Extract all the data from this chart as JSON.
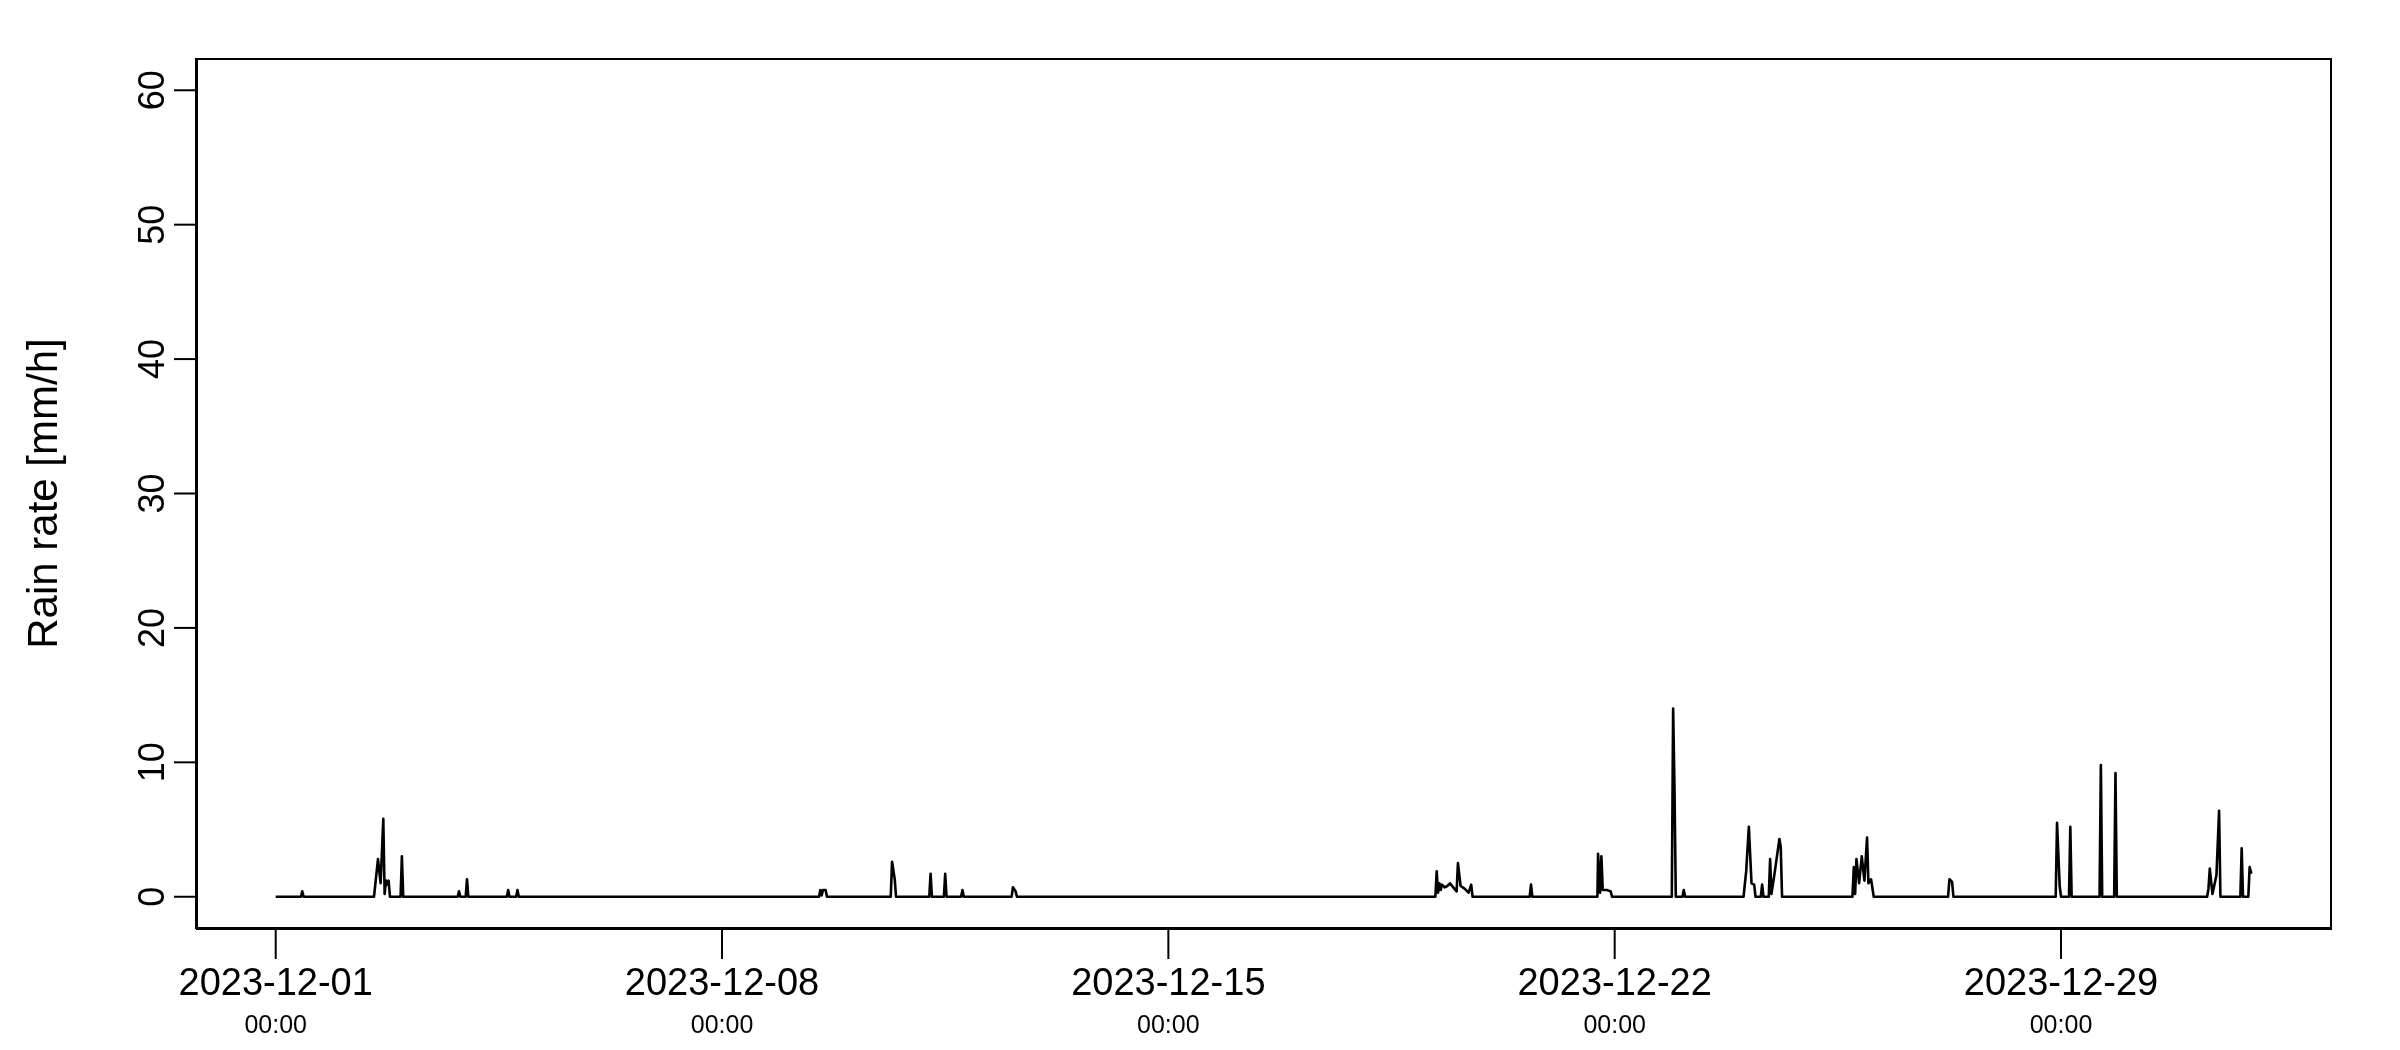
{
  "chart_data": {
    "type": "line",
    "ylabel": "Rain rate [mm/h]",
    "xlim": [
      "2023-11-29T18:00",
      "2024-01-02T06:00"
    ],
    "ylim": [
      -2.4,
      62.4
    ],
    "xticks": [
      {
        "value": "2023-12-01T00:00",
        "label": "2023-12-01\n00:00"
      },
      {
        "value": "2023-12-08T00:00",
        "label": "2023-12-08\n00:00"
      },
      {
        "value": "2023-12-15T00:00",
        "label": "2023-12-15\n00:00"
      },
      {
        "value": "2023-12-22T00:00",
        "label": "2023-12-22\n00:00"
      },
      {
        "value": "2023-12-29T00:00",
        "label": "2023-12-29\n00:00"
      }
    ],
    "yticks": [
      0,
      10,
      20,
      30,
      40,
      50,
      60
    ],
    "x": [
      "2023-12-01T00:00",
      "2023-12-01T09:30",
      "2023-12-01T10:00",
      "2023-12-01T10:30",
      "2023-12-02T13:00",
      "2023-12-02T14:30",
      "2023-12-02T15:30",
      "2023-12-02T16:30",
      "2023-12-02T17:00",
      "2023-12-02T17:30",
      "2023-12-02T18:00",
      "2023-12-02T18:30",
      "2023-12-02T19:00",
      "2023-12-02T23:00",
      "2023-12-02T23:30",
      "2023-12-03T00:00",
      "2023-12-03T20:30",
      "2023-12-03T21:00",
      "2023-12-03T21:30",
      "2023-12-03T23:30",
      "2023-12-04T00:00",
      "2023-12-04T00:30",
      "2023-12-04T15:00",
      "2023-12-04T15:30",
      "2023-12-04T16:00",
      "2023-12-04T18:30",
      "2023-12-04T19:00",
      "2023-12-04T19:30",
      "2023-12-09T12:30",
      "2023-12-09T13:00",
      "2023-12-09T13:30",
      "2023-12-09T14:00",
      "2023-12-09T15:00",
      "2023-12-09T15:30",
      "2023-12-10T15:30",
      "2023-12-10T16:00",
      "2023-12-10T17:00",
      "2023-12-10T17:30",
      "2023-12-11T06:00",
      "2023-12-11T06:30",
      "2023-12-11T07:00",
      "2023-12-11T11:30",
      "2023-12-11T12:00",
      "2023-12-11T12:30",
      "2023-12-11T18:00",
      "2023-12-11T18:30",
      "2023-12-11T19:00",
      "2023-12-12T13:00",
      "2023-12-12T13:30",
      "2023-12-12T14:30",
      "2023-12-12T15:00",
      "2023-12-19T04:30",
      "2023-12-19T05:00",
      "2023-12-19T05:30",
      "2023-12-19T06:00",
      "2023-12-19T06:30",
      "2023-12-19T07:00",
      "2023-12-19T08:00",
      "2023-12-19T09:00",
      "2023-12-19T10:00",
      "2023-12-19T12:30",
      "2023-12-19T13:00",
      "2023-12-19T14:00",
      "2023-12-19T15:30",
      "2023-12-19T17:00",
      "2023-12-19T18:00",
      "2023-12-19T18:30",
      "2023-12-20T16:00",
      "2023-12-20T16:30",
      "2023-12-20T17:00",
      "2023-12-21T17:30",
      "2023-12-21T17:45",
      "2023-12-21T18:30",
      "2023-12-21T19:00",
      "2023-12-21T19:30",
      "2023-12-21T21:00",
      "2023-12-21T22:30",
      "2023-12-21T23:00",
      "2023-12-22T21:30",
      "2023-12-22T22:00",
      "2023-12-22T22:30",
      "2023-12-22T23:00",
      "2023-12-23T01:30",
      "2023-12-23T02:00",
      "2023-12-23T02:30",
      "2023-12-24T00:30",
      "2023-12-24T01:30",
      "2023-12-24T02:30",
      "2023-12-24T03:30",
      "2023-12-24T04:30",
      "2023-12-24T05:00",
      "2023-12-24T07:00",
      "2023-12-24T07:30",
      "2023-12-24T08:00",
      "2023-12-24T10:00",
      "2023-12-24T10:30",
      "2023-12-24T11:00",
      "2023-12-24T12:00",
      "2023-12-24T14:00",
      "2023-12-24T14:30",
      "2023-12-24T15:00",
      "2023-12-25T17:30",
      "2023-12-25T18:00",
      "2023-12-25T18:30",
      "2023-12-25T19:00",
      "2023-12-25T20:00",
      "2023-12-25T21:00",
      "2023-12-25T22:00",
      "2023-12-25T23:00",
      "2023-12-25T23:30",
      "2023-12-26T00:30",
      "2023-12-26T01:30",
      "2023-12-27T05:30",
      "2023-12-27T06:00",
      "2023-12-27T07:00",
      "2023-12-27T07:30",
      "2023-12-28T22:00",
      "2023-12-28T22:30",
      "2023-12-28T23:30",
      "2023-12-29T00:00",
      "2023-12-29T03:00",
      "2023-12-29T03:30",
      "2023-12-29T04:00",
      "2023-12-29T14:30",
      "2023-12-29T15:00",
      "2023-12-29T15:30",
      "2023-12-29T20:00",
      "2023-12-29T20:30",
      "2023-12-29T21:00",
      "2023-12-31T07:00",
      "2023-12-31T07:30",
      "2023-12-31T08:00",
      "2023-12-31T09:00",
      "2023-12-31T10:30",
      "2023-12-31T11:30",
      "2023-12-31T12:00",
      "2023-12-31T19:30",
      "2023-12-31T20:00",
      "2023-12-31T20:30",
      "2023-12-31T22:30",
      "2023-12-31T23:00",
      "2023-12-31T23:30",
      "2024-01-01T00:00"
    ],
    "series": [
      {
        "color": "#000000",
        "values": [
          0,
          0,
          0.4,
          0,
          0,
          2.8,
          1.0,
          5.8,
          0.2,
          1.2,
          0.9,
          1.2,
          0,
          0,
          3.0,
          0,
          0,
          0.4,
          0,
          0,
          1.3,
          0,
          0,
          0.5,
          0,
          0,
          0.5,
          0,
          0,
          0.5,
          0.1,
          0.5,
          0.5,
          0,
          0,
          2.6,
          1.3,
          0,
          0,
          1.7,
          0,
          0,
          1.7,
          0,
          0,
          0.5,
          0,
          0,
          0.7,
          0.4,
          0,
          0,
          1.9,
          0.3,
          1.0,
          0.5,
          0.9,
          0.7,
          0.8,
          1.0,
          0.4,
          2.5,
          0.8,
          0.6,
          0.3,
          0.9,
          0,
          0,
          0.9,
          0,
          0,
          3.2,
          0.3,
          3.0,
          0.5,
          0.5,
          0.4,
          0,
          0,
          14.0,
          8.3,
          0,
          0,
          0.5,
          0,
          0,
          1.9,
          5.2,
          1.0,
          0.9,
          0,
          0,
          0.9,
          0,
          0,
          2.8,
          0.2,
          1.5,
          4.3,
          3.7,
          0,
          0,
          2.2,
          0.2,
          2.8,
          1.0,
          3.0,
          1.2,
          4.4,
          1.0,
          1.3,
          0,
          0,
          1.3,
          1.1,
          0,
          0,
          5.5,
          0.8,
          0,
          0,
          5.2,
          0,
          0,
          9.8,
          0,
          0,
          9.2,
          0,
          0,
          0.6,
          2.1,
          0.2,
          1.6,
          6.4,
          0,
          0,
          3.6,
          0,
          0,
          2.2,
          1.8,
          1.8
        ]
      }
    ]
  }
}
